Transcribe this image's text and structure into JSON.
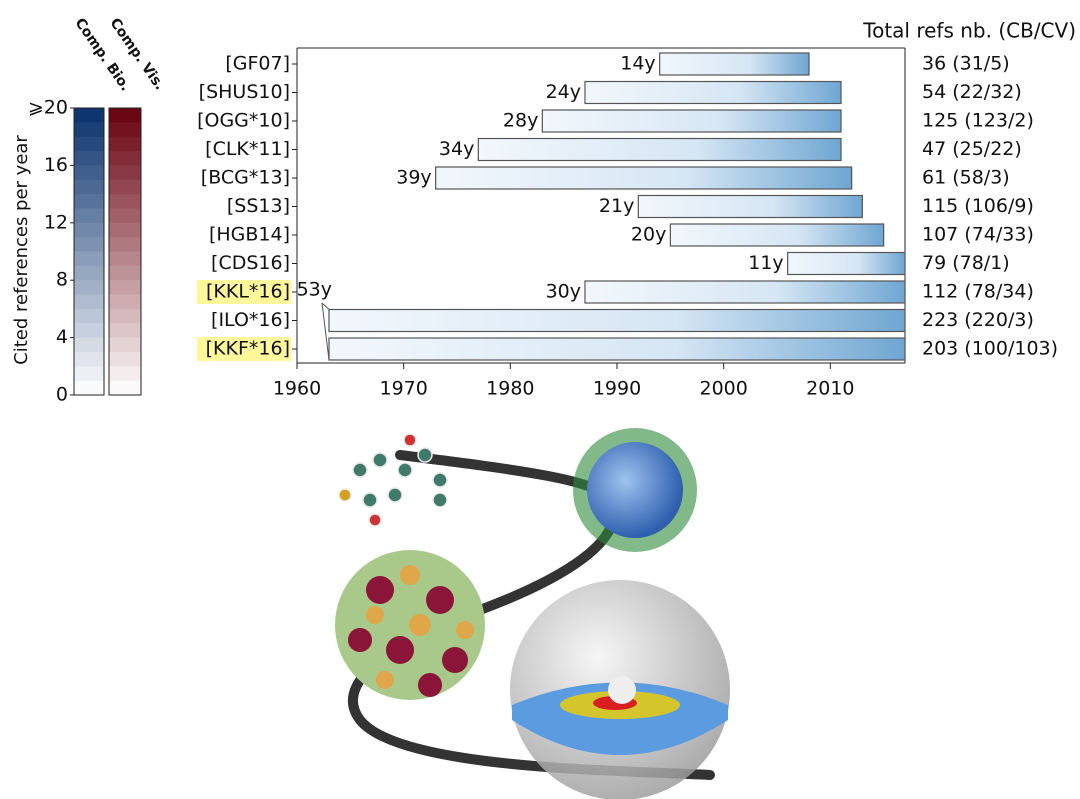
{
  "chart_data": {
    "type": "timeline",
    "header": "Total refs nb. (CB/CV)",
    "colorbar": {
      "label": "Cited references per year",
      "ylim": [
        0,
        20
      ],
      "yticks": [
        0,
        4,
        8,
        12,
        16,
        {
          "value": 20,
          "label": "⩾20"
        }
      ],
      "series": [
        {
          "name": "Comp. Bio.",
          "color": "#08306b"
        },
        {
          "name": "Comp. Vis.",
          "color": "#67000d"
        }
      ]
    },
    "xlim": [
      1960,
      2017
    ],
    "xticks": [
      1960,
      1970,
      1980,
      1990,
      2000,
      2010
    ],
    "rows": [
      {
        "label": "[GF07]",
        "start": 1994,
        "end": 2008,
        "span_label": "14y",
        "total": "36 (31/5)",
        "highlight": false
      },
      {
        "label": "[SHUS10]",
        "start": 1987,
        "end": 2011,
        "span_label": "24y",
        "total": "54 (22/32)",
        "highlight": false
      },
      {
        "label": "[OGG*10]",
        "start": 1983,
        "end": 2011,
        "span_label": "28y",
        "total": "125 (123/2)",
        "highlight": false
      },
      {
        "label": "[CLK*11]",
        "start": 1977,
        "end": 2011,
        "span_label": "34y",
        "total": "47 (25/22)",
        "highlight": false
      },
      {
        "label": "[BCG*13]",
        "start": 1973,
        "end": 2012,
        "span_label": "39y",
        "total": "61 (58/3)",
        "highlight": false
      },
      {
        "label": "[SS13]",
        "start": 1992,
        "end": 2013,
        "span_label": "21y",
        "total": "115 (106/9)",
        "highlight": false
      },
      {
        "label": "[HGB14]",
        "start": 1995,
        "end": 2015,
        "span_label": "20y",
        "total": "107 (74/33)",
        "highlight": false
      },
      {
        "label": "[CDS16]",
        "start": 2006,
        "end": 2017,
        "span_label": "11y",
        "total": "79 (78/1)",
        "highlight": false
      },
      {
        "label": "[KKL*16]",
        "start": 1987,
        "end": 2017,
        "span_label": "30y",
        "total": "112 (78/34)",
        "highlight": true
      },
      {
        "label": "[ILO*16]",
        "start": 1963,
        "end": 2017,
        "span_label": "53y",
        "total": "223 (220/3)",
        "highlight": false
      },
      {
        "label": "[KKF*16]",
        "start": 1963,
        "end": 2017,
        "span_label": null,
        "total": "203 (100/103)",
        "highlight": true
      }
    ]
  }
}
